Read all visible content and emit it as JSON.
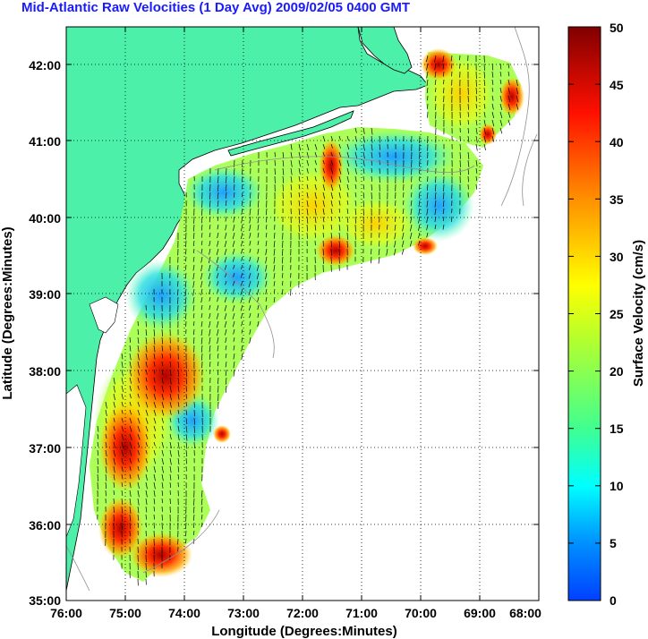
{
  "title": "Mid-Atlantic Raw Velocities (1 Day Avg) 2009/02/05 0400 GMT",
  "x_axis": {
    "label": "Longitude (Degrees:Minutes)",
    "ticks": [
      "76:00",
      "75:00",
      "74:00",
      "73:00",
      "72:00",
      "71:00",
      "70:00",
      "69:00",
      "68:00"
    ]
  },
  "y_axis": {
    "label": "Latitude (Degrees:Minutes)",
    "ticks": [
      "35:00",
      "36:00",
      "37:00",
      "38:00",
      "39:00",
      "40:00",
      "41:00",
      "42:00"
    ]
  },
  "colorbar": {
    "label": "Surface Velocity (cm/s)",
    "ticks": [
      "0",
      "5",
      "10",
      "15",
      "20",
      "25",
      "30",
      "35",
      "40",
      "45",
      "50"
    ],
    "min": 0,
    "max": 50,
    "colormap": [
      "#0000ff",
      "#0080ff",
      "#00ffff",
      "#80ff80",
      "#ffff00",
      "#ff8000",
      "#ff0000",
      "#800000"
    ]
  },
  "colors": {
    "land": "#4cf0a8",
    "water": "#ffffff",
    "title_text": "#1a1aff",
    "coastline": "#808080",
    "grid": "#000000"
  },
  "map": {
    "lon_range": [
      -76,
      -68
    ],
    "lat_range": [
      35,
      42.5
    ],
    "grid": "dotted"
  }
}
